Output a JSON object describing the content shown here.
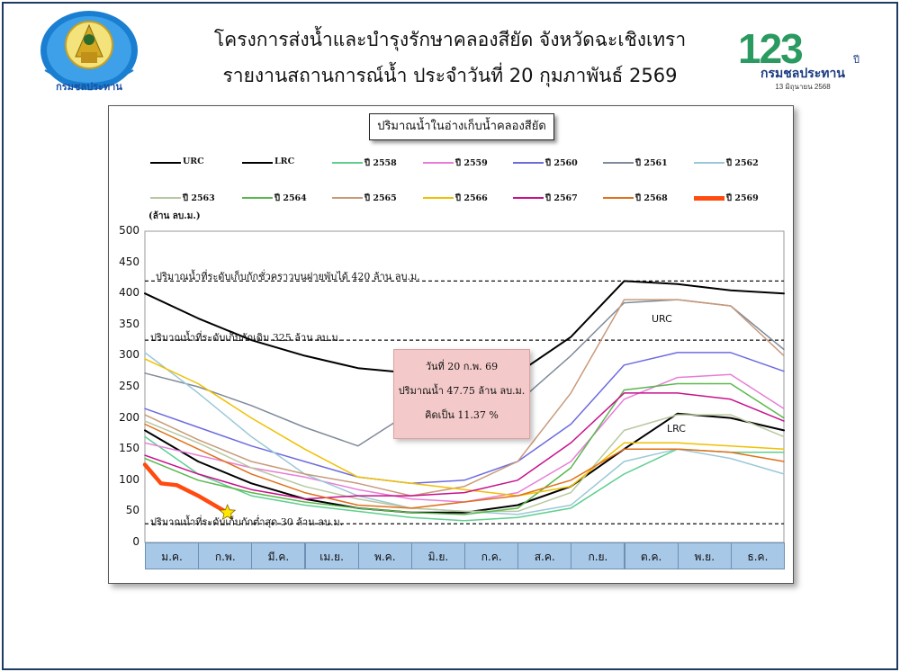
{
  "header": {
    "title_line1": "โครงการส่งน้ำและบำรุงรักษาคลองสียัด จังหวัดฉะเชิงเทรา",
    "title_line2": "รายงานสถานการณ์น้ำ ประจำวันที่ 20 กุมภาพันธ์ 2569",
    "logo_left_text": "กรมชลประทาน",
    "logo_right_number": "123",
    "logo_right_suffix": "ปี",
    "logo_right_name": "กรมชลประทาน",
    "logo_right_date": "13 มิถุนายน 2568"
  },
  "colors": {
    "frame": "#1f3b63",
    "month_bg": "#a8c8e8",
    "annot_bg": "#f3c9c9"
  },
  "chart_data": {
    "type": "line",
    "title": "ปริมาณน้ำในอ่างเก็บน้ำคลองสียัด",
    "ylabel": "(ล้าน ลบ.ม.)",
    "ylim": [
      0,
      500
    ],
    "yticks": [
      0,
      50,
      100,
      150,
      200,
      250,
      300,
      350,
      400,
      450,
      500
    ],
    "categories": [
      "ม.ค.",
      "ก.พ.",
      "มี.ค.",
      "เม.ย.",
      "พ.ค.",
      "มิ.ย.",
      "ก.ค.",
      "ส.ค.",
      "ก.ย.",
      "ต.ค.",
      "พ.ย.",
      "ธ.ค."
    ],
    "x_note": "x values are month index (0 = start of ม.ค., 12 = end of ธ.ค.)",
    "series": [
      {
        "name": "URC",
        "color": "#000000",
        "width": 2,
        "points": [
          [
            0,
            400
          ],
          [
            1,
            360
          ],
          [
            2,
            325
          ],
          [
            3,
            300
          ],
          [
            4,
            280
          ],
          [
            5,
            272
          ],
          [
            6,
            270
          ],
          [
            7,
            272
          ],
          [
            8,
            330
          ],
          [
            9,
            420
          ],
          [
            10,
            415
          ],
          [
            11,
            405
          ],
          [
            12,
            400
          ]
        ]
      },
      {
        "name": "LRC",
        "color": "#000000",
        "width": 2,
        "points": [
          [
            0,
            180
          ],
          [
            1,
            130
          ],
          [
            2,
            95
          ],
          [
            3,
            70
          ],
          [
            4,
            55
          ],
          [
            5,
            48
          ],
          [
            6,
            48
          ],
          [
            7,
            60
          ],
          [
            8,
            90
          ],
          [
            9,
            150
          ],
          [
            10,
            207
          ],
          [
            11,
            200
          ],
          [
            12,
            180
          ]
        ]
      },
      {
        "name": "ปี 2558",
        "color": "#5fcf8f",
        "width": 1.5,
        "points": [
          [
            0,
            170
          ],
          [
            1,
            110
          ],
          [
            2,
            75
          ],
          [
            3,
            60
          ],
          [
            4,
            50
          ],
          [
            5,
            40
          ],
          [
            6,
            35
          ],
          [
            7,
            40
          ],
          [
            8,
            55
          ],
          [
            9,
            110
          ],
          [
            10,
            150
          ],
          [
            11,
            145
          ],
          [
            12,
            145
          ]
        ]
      },
      {
        "name": "ปี 2559",
        "color": "#e67ed6",
        "width": 1.5,
        "points": [
          [
            0,
            160
          ],
          [
            1,
            140
          ],
          [
            2,
            120
          ],
          [
            3,
            105
          ],
          [
            4,
            85
          ],
          [
            5,
            70
          ],
          [
            6,
            65
          ],
          [
            7,
            80
          ],
          [
            8,
            130
          ],
          [
            9,
            230
          ],
          [
            10,
            265
          ],
          [
            11,
            270
          ],
          [
            12,
            215
          ]
        ]
      },
      {
        "name": "ปี 2560",
        "color": "#6d6be0",
        "width": 1.5,
        "points": [
          [
            0,
            215
          ],
          [
            1,
            185
          ],
          [
            2,
            155
          ],
          [
            3,
            130
          ],
          [
            4,
            105
          ],
          [
            5,
            95
          ],
          [
            6,
            100
          ],
          [
            7,
            130
          ],
          [
            8,
            190
          ],
          [
            9,
            285
          ],
          [
            10,
            305
          ],
          [
            11,
            305
          ],
          [
            12,
            275
          ]
        ]
      },
      {
        "name": "ปี 2561",
        "color": "#7f8a9a",
        "width": 1.5,
        "points": [
          [
            0,
            272
          ],
          [
            1,
            250
          ],
          [
            2,
            220
          ],
          [
            3,
            185
          ],
          [
            4,
            155
          ],
          [
            5,
            210
          ],
          [
            6,
            215
          ],
          [
            7,
            225
          ],
          [
            8,
            300
          ],
          [
            9,
            385
          ],
          [
            10,
            390
          ],
          [
            11,
            380
          ],
          [
            12,
            310
          ]
        ]
      },
      {
        "name": "ปี 2562",
        "color": "#9bc8d8",
        "width": 1.5,
        "points": [
          [
            0,
            305
          ],
          [
            1,
            240
          ],
          [
            2,
            170
          ],
          [
            3,
            110
          ],
          [
            4,
            75
          ],
          [
            5,
            55
          ],
          [
            6,
            50
          ],
          [
            7,
            45
          ],
          [
            8,
            60
          ],
          [
            9,
            130
          ],
          [
            10,
            150
          ],
          [
            11,
            135
          ],
          [
            12,
            110
          ]
        ]
      },
      {
        "name": "ปี 2563",
        "color": "#b8c8a0",
        "width": 1.5,
        "points": [
          [
            0,
            195
          ],
          [
            1,
            160
          ],
          [
            2,
            120
          ],
          [
            3,
            90
          ],
          [
            4,
            70
          ],
          [
            5,
            55
          ],
          [
            6,
            50
          ],
          [
            7,
            50
          ],
          [
            8,
            80
          ],
          [
            9,
            180
          ],
          [
            10,
            205
          ],
          [
            11,
            205
          ],
          [
            12,
            170
          ]
        ]
      },
      {
        "name": "ปี 2564",
        "color": "#5ab84f",
        "width": 1.5,
        "points": [
          [
            0,
            135
          ],
          [
            1,
            100
          ],
          [
            2,
            80
          ],
          [
            3,
            65
          ],
          [
            4,
            55
          ],
          [
            5,
            48
          ],
          [
            6,
            45
          ],
          [
            7,
            55
          ],
          [
            8,
            120
          ],
          [
            9,
            245
          ],
          [
            10,
            255
          ],
          [
            11,
            255
          ],
          [
            12,
            200
          ]
        ]
      },
      {
        "name": "ปี 2565",
        "color": "#c89a7a",
        "width": 1.5,
        "points": [
          [
            0,
            205
          ],
          [
            1,
            165
          ],
          [
            2,
            130
          ],
          [
            3,
            110
          ],
          [
            4,
            95
          ],
          [
            5,
            75
          ],
          [
            6,
            90
          ],
          [
            7,
            130
          ],
          [
            8,
            240
          ],
          [
            9,
            390
          ],
          [
            10,
            390
          ],
          [
            11,
            380
          ],
          [
            12,
            300
          ]
        ]
      },
      {
        "name": "ปี 2566",
        "color": "#f0c000",
        "width": 1.5,
        "points": [
          [
            0,
            295
          ],
          [
            1,
            255
          ],
          [
            2,
            200
          ],
          [
            3,
            150
          ],
          [
            4,
            105
          ],
          [
            5,
            95
          ],
          [
            6,
            85
          ],
          [
            7,
            75
          ],
          [
            8,
            90
          ],
          [
            9,
            160
          ],
          [
            10,
            160
          ],
          [
            11,
            155
          ],
          [
            12,
            150
          ]
        ]
      },
      {
        "name": "ปี 2567",
        "color": "#c8108c",
        "width": 1.5,
        "points": [
          [
            0,
            140
          ],
          [
            1,
            110
          ],
          [
            2,
            85
          ],
          [
            3,
            70
          ],
          [
            4,
            75
          ],
          [
            5,
            75
          ],
          [
            6,
            80
          ],
          [
            7,
            100
          ],
          [
            8,
            160
          ],
          [
            9,
            240
          ],
          [
            10,
            240
          ],
          [
            11,
            230
          ],
          [
            12,
            195
          ]
        ]
      },
      {
        "name": "ปี 2568",
        "color": "#e0701a",
        "width": 1.5,
        "points": [
          [
            0,
            190
          ],
          [
            1,
            150
          ],
          [
            2,
            110
          ],
          [
            3,
            80
          ],
          [
            4,
            60
          ],
          [
            5,
            55
          ],
          [
            6,
            65
          ],
          [
            7,
            75
          ],
          [
            8,
            100
          ],
          [
            9,
            150
          ],
          [
            10,
            150
          ],
          [
            11,
            145
          ],
          [
            12,
            130
          ]
        ]
      },
      {
        "name": "ปี 2569",
        "color": "#ff4a10",
        "width": 4.5,
        "points": [
          [
            0,
            125
          ],
          [
            0.3,
            95
          ],
          [
            0.6,
            92
          ],
          [
            1,
            75
          ],
          [
            1.55,
            47.75
          ]
        ]
      }
    ],
    "reference_lines": [
      {
        "value": 420,
        "label": "ปริมาณน้ำที่ระดับเก็บกักชั่วคราวบนฝายพับได้ 420 ล้าน ลบ.ม."
      },
      {
        "value": 325,
        "label": "ปริมาณน้ำที่ระดับเก็บกักเดิม 325 ล้าน ลบ.ม."
      },
      {
        "value": 30,
        "label": "ปริมาณน้ำที่ระดับเก็บกักต่ำสุด 30 ล้าน ลบ.ม."
      }
    ],
    "curve_labels": [
      {
        "text": "URC"
      },
      {
        "text": "LRC"
      }
    ],
    "marker": {
      "x": 1.55,
      "y": 47.75,
      "shape": "star",
      "color": "#ffe800"
    },
    "annotation": {
      "date": "วันที่ 20 ก.พ. 69",
      "volume": "ปริมาณน้ำ 47.75 ล้าน ลบ.ม.",
      "percent": "คิดเป็น 11.37 %"
    }
  }
}
